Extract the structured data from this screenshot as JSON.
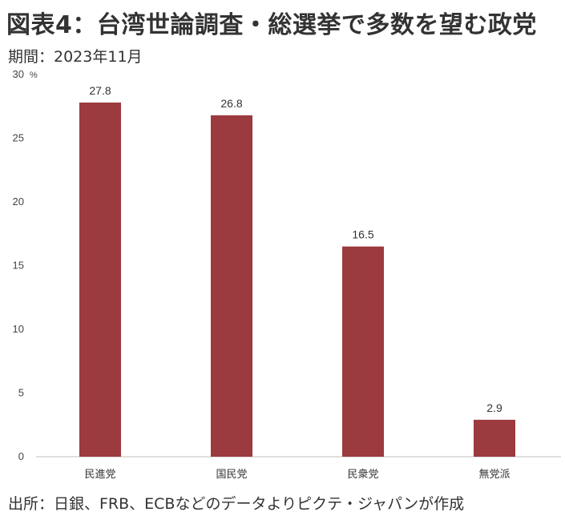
{
  "title": "図表4：台湾世論調査・総選挙で多数を望む政党",
  "subtitle": "期間：2023年11月",
  "source": "出所：日銀、FRB、ECBなどのデータよりピクテ・ジャパンが作成",
  "chart_data": {
    "type": "bar",
    "categories": [
      "民進党",
      "国民党",
      "民衆党",
      "無党派"
    ],
    "values": [
      27.8,
      26.8,
      16.5,
      2.9
    ],
    "value_labels": [
      "27.8",
      "26.8",
      "16.5",
      "2.9"
    ],
    "ylim": [
      0,
      30
    ],
    "yticks": [
      0,
      5,
      10,
      15,
      20,
      25,
      30
    ],
    "y_unit": "%",
    "bar_color": "#9b3a3f",
    "axis_color": "#bfbfbf",
    "grid": false,
    "title": "",
    "xlabel": "",
    "ylabel": ""
  }
}
